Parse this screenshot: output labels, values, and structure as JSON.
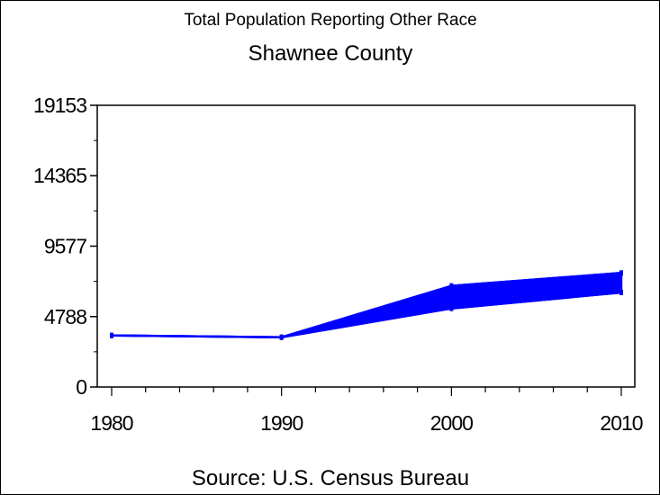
{
  "chart_data": {
    "type": "area",
    "title": "Total Population Reporting Other Race",
    "subtitle": "Shawnee County",
    "footnote": "Source: U.S. Census Bureau",
    "xlabel": "",
    "ylabel": "",
    "x": [
      1980,
      1990,
      2000,
      2010
    ],
    "series": [
      {
        "values": [
          3506,
          3384,
          6872,
          7753
        ]
      },
      {
        "values": [
          3506,
          3384,
          5342,
          6425
        ]
      }
    ],
    "xlim": [
      1980,
      2010
    ],
    "ylim": [
      0,
      19153
    ],
    "yticks": [
      0,
      4788,
      9577,
      14365,
      19153
    ],
    "xticks": [
      1980,
      1990,
      2000,
      2010
    ],
    "grid": false,
    "color": "#0000ff"
  }
}
